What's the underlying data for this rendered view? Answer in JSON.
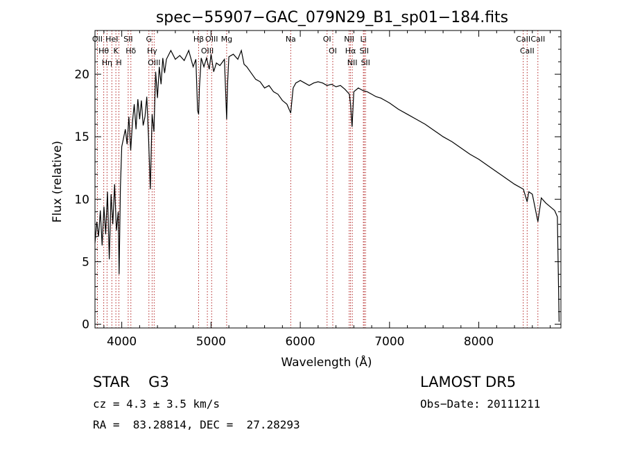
{
  "chart_data": {
    "type": "line",
    "title": "spec−55907−GAC_079N29_B1_sp01−184.fits",
    "xlabel": "Wavelength (Å)",
    "ylabel": "Flux (relative)",
    "xlim": [
      3700,
      8920
    ],
    "ylim": [
      -0.3,
      23.5
    ],
    "xticks": [
      4000,
      5000,
      6000,
      7000,
      8000
    ],
    "yticks": [
      0,
      5,
      10,
      15,
      20
    ],
    "grid": false,
    "line_color": "#000000",
    "marker_color": "#b22222",
    "series": [
      {
        "x": [
          3700,
          3720,
          3740,
          3760,
          3780,
          3800,
          3820,
          3840,
          3860,
          3880,
          3900,
          3920,
          3940,
          3960,
          3970,
          3985,
          4000,
          4020,
          4040,
          4060,
          4080,
          4100,
          4120,
          4140,
          4160,
          4180,
          4200,
          4220,
          4240,
          4260,
          4280,
          4300,
          4320,
          4340,
          4360,
          4380,
          4400,
          4420,
          4440,
          4460,
          4480,
          4500,
          4550,
          4600,
          4650,
          4700,
          4750,
          4800,
          4830,
          4850,
          4861,
          4870,
          4890,
          4920,
          4950,
          4980,
          5000,
          5030,
          5060,
          5100,
          5150,
          5175,
          5185,
          5200,
          5250,
          5300,
          5340,
          5370,
          5400,
          5450,
          5500,
          5550,
          5600,
          5650,
          5700,
          5750,
          5800,
          5850,
          5893,
          5920,
          5950,
          6000,
          6050,
          6100,
          6150,
          6200,
          6250,
          6300,
          6350,
          6400,
          6450,
          6500,
          6550,
          6563,
          6580,
          6600,
          6650,
          6700,
          6750,
          6800,
          6850,
          6900,
          6950,
          7000,
          7100,
          7200,
          7300,
          7400,
          7500,
          7600,
          7700,
          7800,
          7900,
          8000,
          8100,
          8200,
          8300,
          8400,
          8500,
          8542,
          8560,
          8600,
          8662,
          8700,
          8750,
          8800,
          8850,
          8880,
          8900
        ],
        "y": [
          6.5,
          8.2,
          7.0,
          9.1,
          6.3,
          9.4,
          7.2,
          10.6,
          5.2,
          10.4,
          8.0,
          11.2,
          7.5,
          9.0,
          4.0,
          11.0,
          14.2,
          14.9,
          15.6,
          14.4,
          16.6,
          13.9,
          16.2,
          17.6,
          15.6,
          18.0,
          16.4,
          17.9,
          15.9,
          16.6,
          18.2,
          15.0,
          10.8,
          16.8,
          15.4,
          20.2,
          18.1,
          20.6,
          19.2,
          21.3,
          20.1,
          21.2,
          21.9,
          21.2,
          21.5,
          21.1,
          21.9,
          20.6,
          21.2,
          17.1,
          16.8,
          18.9,
          21.3,
          20.6,
          21.3,
          20.4,
          21.6,
          20.2,
          20.9,
          20.7,
          21.2,
          16.4,
          19.2,
          21.4,
          21.6,
          21.2,
          21.9,
          20.8,
          20.6,
          20.1,
          19.6,
          19.4,
          18.9,
          19.1,
          18.6,
          18.4,
          17.9,
          17.6,
          16.9,
          18.9,
          19.3,
          19.5,
          19.3,
          19.1,
          19.3,
          19.4,
          19.3,
          19.1,
          19.2,
          19.0,
          19.1,
          18.8,
          18.4,
          17.6,
          15.8,
          18.6,
          18.9,
          18.7,
          18.6,
          18.4,
          18.2,
          18.1,
          17.9,
          17.7,
          17.2,
          16.8,
          16.4,
          16.0,
          15.5,
          15.0,
          14.6,
          14.1,
          13.6,
          13.2,
          12.7,
          12.2,
          11.7,
          11.2,
          10.8,
          9.8,
          10.6,
          10.4,
          8.2,
          10.1,
          9.7,
          9.4,
          9.1,
          8.6,
          0.2
        ]
      }
    ],
    "lines": [
      {
        "x": 3727,
        "label": "OII"
      },
      {
        "x": 3798,
        "label": "Hθ"
      },
      {
        "x": 3835,
        "label": "Hη"
      },
      {
        "x": 3889,
        "label": "HeI"
      },
      {
        "x": 3934,
        "label": "K"
      },
      {
        "x": 3968,
        "label": "H"
      },
      {
        "x": 4072,
        "label": "SII"
      },
      {
        "x": 4102,
        "label": "Hδ"
      },
      {
        "x": 4304,
        "label": "G"
      },
      {
        "x": 4340,
        "label": "Hγ"
      },
      {
        "x": 4363,
        "label": "OIII"
      },
      {
        "x": 4861,
        "label": "Hβ"
      },
      {
        "x": 4959,
        "label": "OIII"
      },
      {
        "x": 5007,
        "label": "OIII"
      },
      {
        "x": 5175,
        "label": "Mg"
      },
      {
        "x": 5893,
        "label": "Na"
      },
      {
        "x": 6300,
        "label": "OI"
      },
      {
        "x": 6364,
        "label": "OI"
      },
      {
        "x": 6548,
        "label": "NII"
      },
      {
        "x": 6563,
        "label": "Hα"
      },
      {
        "x": 6583,
        "label": "NII"
      },
      {
        "x": 6707,
        "label": "Li"
      },
      {
        "x": 6716,
        "label": "SII"
      },
      {
        "x": 6731,
        "label": "SII"
      },
      {
        "x": 8498,
        "label": "CaII"
      },
      {
        "x": 8542,
        "label": "CaII"
      },
      {
        "x": 8662,
        "label": "CaII"
      }
    ]
  },
  "info": {
    "class_text": "STAR    G3",
    "cz_text": "cz = 4.3 ± 3.5 km/s",
    "coords_text": "RA =  83.28814, DEC =  27.28293",
    "survey_text": "LAMOST DR5",
    "obs_text": "Obs−Date: 20111211"
  }
}
